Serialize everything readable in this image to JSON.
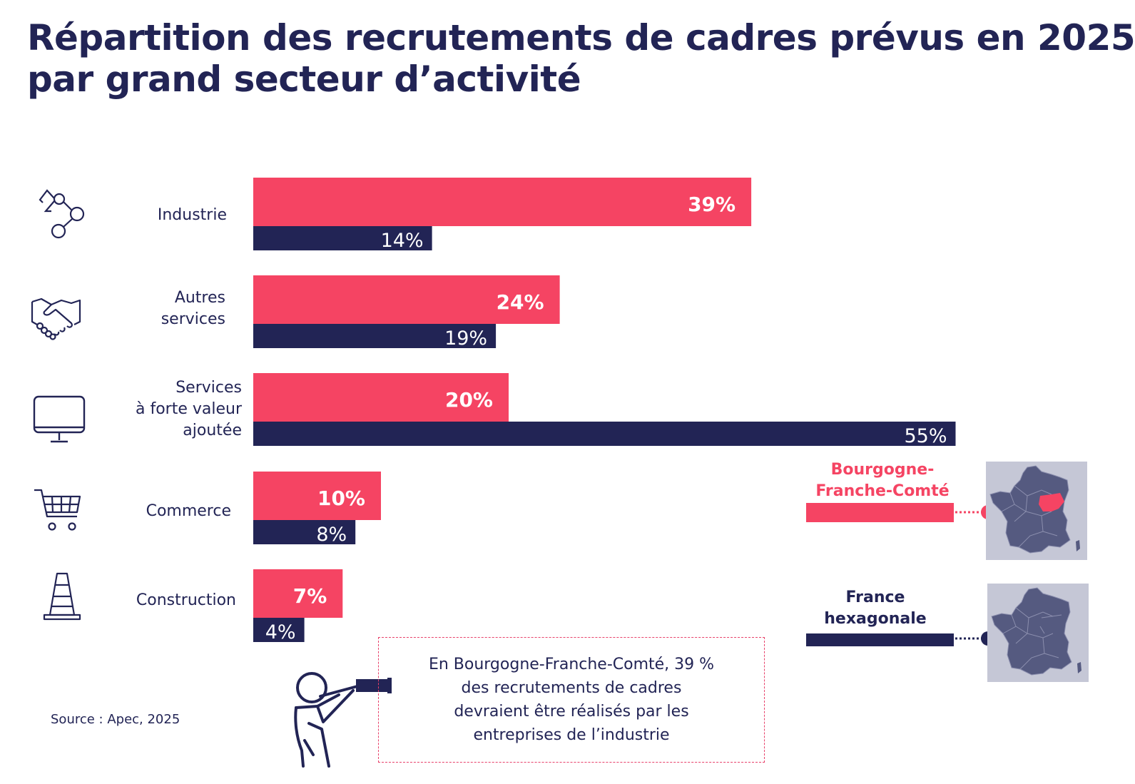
{
  "title": {
    "line1": "Répartition des recrutements de cadres prévus en 2025",
    "line2": "par grand secteur d’activité"
  },
  "colors": {
    "regional": "#f54463",
    "national": "#222455",
    "text": "#222455"
  },
  "chart_data": {
    "type": "bar",
    "orientation": "horizontal",
    "title": "Répartition des recrutements de cadres prévus en 2025 par grand secteur d’activité",
    "categories": [
      "Industrie",
      "Autres services",
      "Services à forte valeur ajoutée",
      "Commerce",
      "Construction"
    ],
    "category_lines": [
      [
        "Industrie"
      ],
      [
        "Autres",
        "services"
      ],
      [
        "Services",
        "à forte valeur",
        "ajoutée"
      ],
      [
        "Commerce"
      ],
      [
        "Construction"
      ]
    ],
    "icons": [
      "molecule-icon",
      "handshake-icon",
      "monitor-icon",
      "shopping-cart-icon",
      "traffic-cone-icon"
    ],
    "series": [
      {
        "name": "Bourgogne-Franche-Comté",
        "values": [
          39,
          24,
          20,
          10,
          7
        ],
        "labels": [
          "39%",
          "24%",
          "20%",
          "10%",
          "7%"
        ]
      },
      {
        "name": "France hexagonale",
        "values": [
          14,
          19,
          55,
          8,
          4
        ],
        "labels": [
          "14%",
          "19%",
          "55%",
          "8%",
          "4%"
        ]
      }
    ],
    "xlim": [
      0,
      55
    ],
    "unit": "%",
    "grid": false
  },
  "legend": {
    "regional_lines": [
      "Bourgogne-",
      "Franche-Comté"
    ],
    "national_lines": [
      "France",
      "hexagonale"
    ]
  },
  "note": {
    "lines": [
      "En Bourgogne-Franche-Comté, 39 %",
      "des recrutements de cadres",
      "devraient être réalisés par les",
      "entreprises de l’industrie"
    ]
  },
  "source": "Source : Apec, 2025"
}
